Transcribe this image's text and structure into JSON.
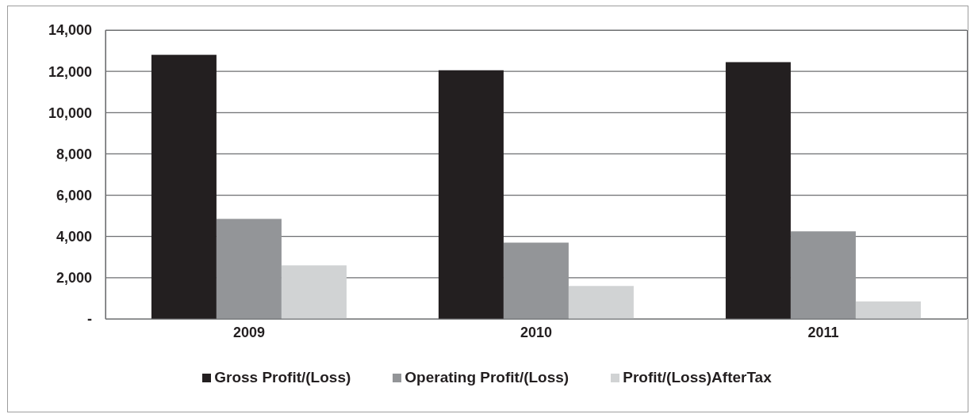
{
  "chart_data": {
    "type": "bar",
    "categories": [
      "2009",
      "2010",
      "2011"
    ],
    "series": [
      {
        "name": "Gross Profit/(Loss)",
        "color": "#231f20",
        "values": [
          12800,
          12050,
          12450
        ]
      },
      {
        "name": "Operating Profit/(Loss)",
        "color": "#939598",
        "values": [
          4850,
          3700,
          4250
        ]
      },
      {
        "name": "Profit/(Loss)AfterTax",
        "color": "#d1d3d4",
        "values": [
          2600,
          1600,
          850
        ]
      }
    ],
    "ylim": [
      0,
      14000
    ],
    "yticks": [
      {
        "value": 0,
        "label": "-"
      },
      {
        "value": 2000,
        "label": "2,000"
      },
      {
        "value": 4000,
        "label": "4,000"
      },
      {
        "value": 6000,
        "label": "6,000"
      },
      {
        "value": 8000,
        "label": "8,000"
      },
      {
        "value": 10000,
        "label": "10,000"
      },
      {
        "value": 12000,
        "label": "12,000"
      },
      {
        "value": 14000,
        "label": "14,000"
      }
    ],
    "grid": "y",
    "legend": "bottom"
  }
}
